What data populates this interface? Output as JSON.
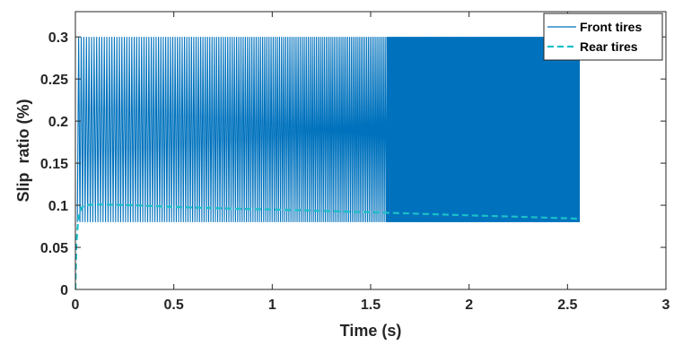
{
  "chart_data": {
    "type": "line",
    "title": "",
    "xlabel": "Time (s)",
    "ylabel": "Slip  ratio (%)",
    "xlim": [
      0,
      3
    ],
    "ylim": [
      0,
      0.33
    ],
    "xticks": [
      0,
      0.5,
      1,
      1.5,
      2,
      2.5,
      3
    ],
    "xtick_labels": [
      "0",
      "0.5",
      "1",
      "1.5",
      "2",
      "2.5",
      "3"
    ],
    "yticks": [
      0,
      0.05,
      0.1,
      0.15,
      0.2,
      0.25,
      0.3
    ],
    "ytick_labels": [
      "0",
      "0.05",
      "0.1",
      "0.15",
      "0.2",
      "0.25",
      "0.3"
    ],
    "grid": false,
    "legend_position": "top-right",
    "series": [
      {
        "name": "Front tires",
        "style": "solid",
        "color": "#0072BD",
        "oscillation": {
          "t_start": 0.01,
          "t_end": 2.56,
          "y_low": 0.08,
          "y_high": 0.3,
          "period_start": 0.0132,
          "period_end": 0.0068,
          "shading_end": 0.008
        }
      },
      {
        "name": "Rear tires",
        "style": "dashed",
        "color": "#1DBFC9",
        "x": [
          0,
          0.005,
          0.015,
          0.03,
          0.05,
          0.1,
          0.3,
          0.5,
          0.8,
          1.0,
          1.3,
          1.6,
          2.0,
          2.3,
          2.56
        ],
        "y": [
          0,
          0.055,
          0.085,
          0.097,
          0.1,
          0.101,
          0.1,
          0.098,
          0.096,
          0.095,
          0.093,
          0.091,
          0.088,
          0.086,
          0.084
        ]
      }
    ]
  }
}
